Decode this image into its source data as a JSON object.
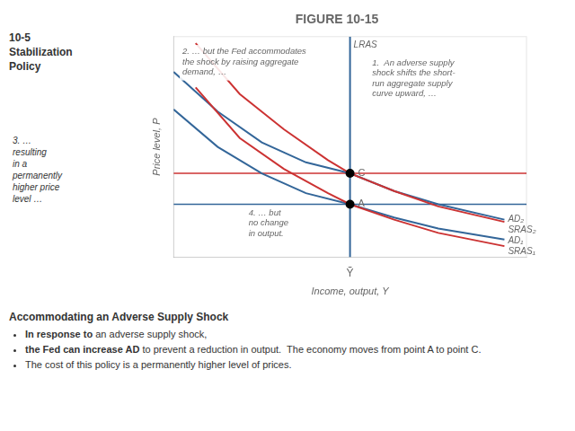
{
  "chart_data": {
    "type": "line",
    "title": "FIGURE 10-15",
    "subtitle": "Accommodating an Adverse Supply Shock",
    "xlabel": "Income, output, Y",
    "ylabel": "Price level, P",
    "xlim": [
      1.5,
      9.5
    ],
    "ylim": [
      0.8,
      10.8
    ],
    "xticks": [
      {
        "value": 5.5,
        "label": "Ỹ"
      }
    ],
    "yticks": [],
    "tick_labels": "x",
    "grid": false,
    "legend": false,
    "series": [
      {
        "name": "SRAS₁",
        "color": "#cc3333",
        "x": [
          2.0,
          3.0,
          4.0,
          5.0,
          5.5,
          6.5,
          7.5,
          9.0
        ],
        "values": [
          8.5,
          6.2,
          4.8,
          3.7,
          3.2,
          2.5,
          1.9,
          1.3
        ]
      },
      {
        "name": "SRAS₂",
        "color": "#cc3333",
        "x": [
          2.0,
          3.0,
          4.0,
          5.0,
          5.5,
          6.5,
          7.5,
          9.0
        ],
        "values": [
          10.5,
          8.2,
          6.6,
          5.2,
          4.6,
          3.8,
          3.1,
          2.4
        ]
      },
      {
        "name": "AD₁",
        "color": "#336699",
        "x": [
          1.5,
          2.5,
          3.5,
          4.5,
          5.5,
          6.5,
          7.5,
          9.0
        ],
        "values": [
          7.5,
          5.8,
          4.6,
          3.7,
          3.2,
          2.6,
          2.1,
          1.6
        ]
      },
      {
        "name": "AD₂",
        "color": "#336699",
        "x": [
          1.5,
          2.5,
          3.5,
          4.5,
          5.5,
          6.5,
          7.5,
          9.0
        ],
        "values": [
          9.2,
          7.4,
          6.0,
          5.1,
          4.6,
          3.8,
          3.2,
          2.5
        ]
      },
      {
        "name": "LRAS",
        "type": "vline",
        "color": "#336699",
        "x": [
          5.5
        ]
      },
      {
        "type": "hline",
        "color": "#336699",
        "values": [
          3.2
        ]
      },
      {
        "type": "hline",
        "color": "#cc3333",
        "values": [
          4.6
        ]
      },
      {
        "type": "scatter",
        "color": "#000000",
        "x": [
          5.5,
          5.5
        ],
        "values": [
          3.2,
          4.6
        ],
        "labels": [
          "A",
          "C"
        ]
      }
    ],
    "annotations": [
      "10-5\nStabilization\nPolicy",
      "2. … but the Fed accommodates\nthe shock by raising aggregate\ndemand, …",
      "1.  An adverse supply\nshock shifts the short-\nrun aggregate supply\ncurve upward, …",
      "3. …\nresulting\nin a\npermanently\nhigher price\nlevel …",
      "4. … but\nno change\nin output.",
      [
        "In response to",
        " an adverse supply shock,"
      ],
      [
        "the Fed can increase AD",
        " to prevent a reduction in output.  The economy moves from point A to point C."
      ],
      "The cost of this policy is a permanently higher level of prices."
    ]
  }
}
